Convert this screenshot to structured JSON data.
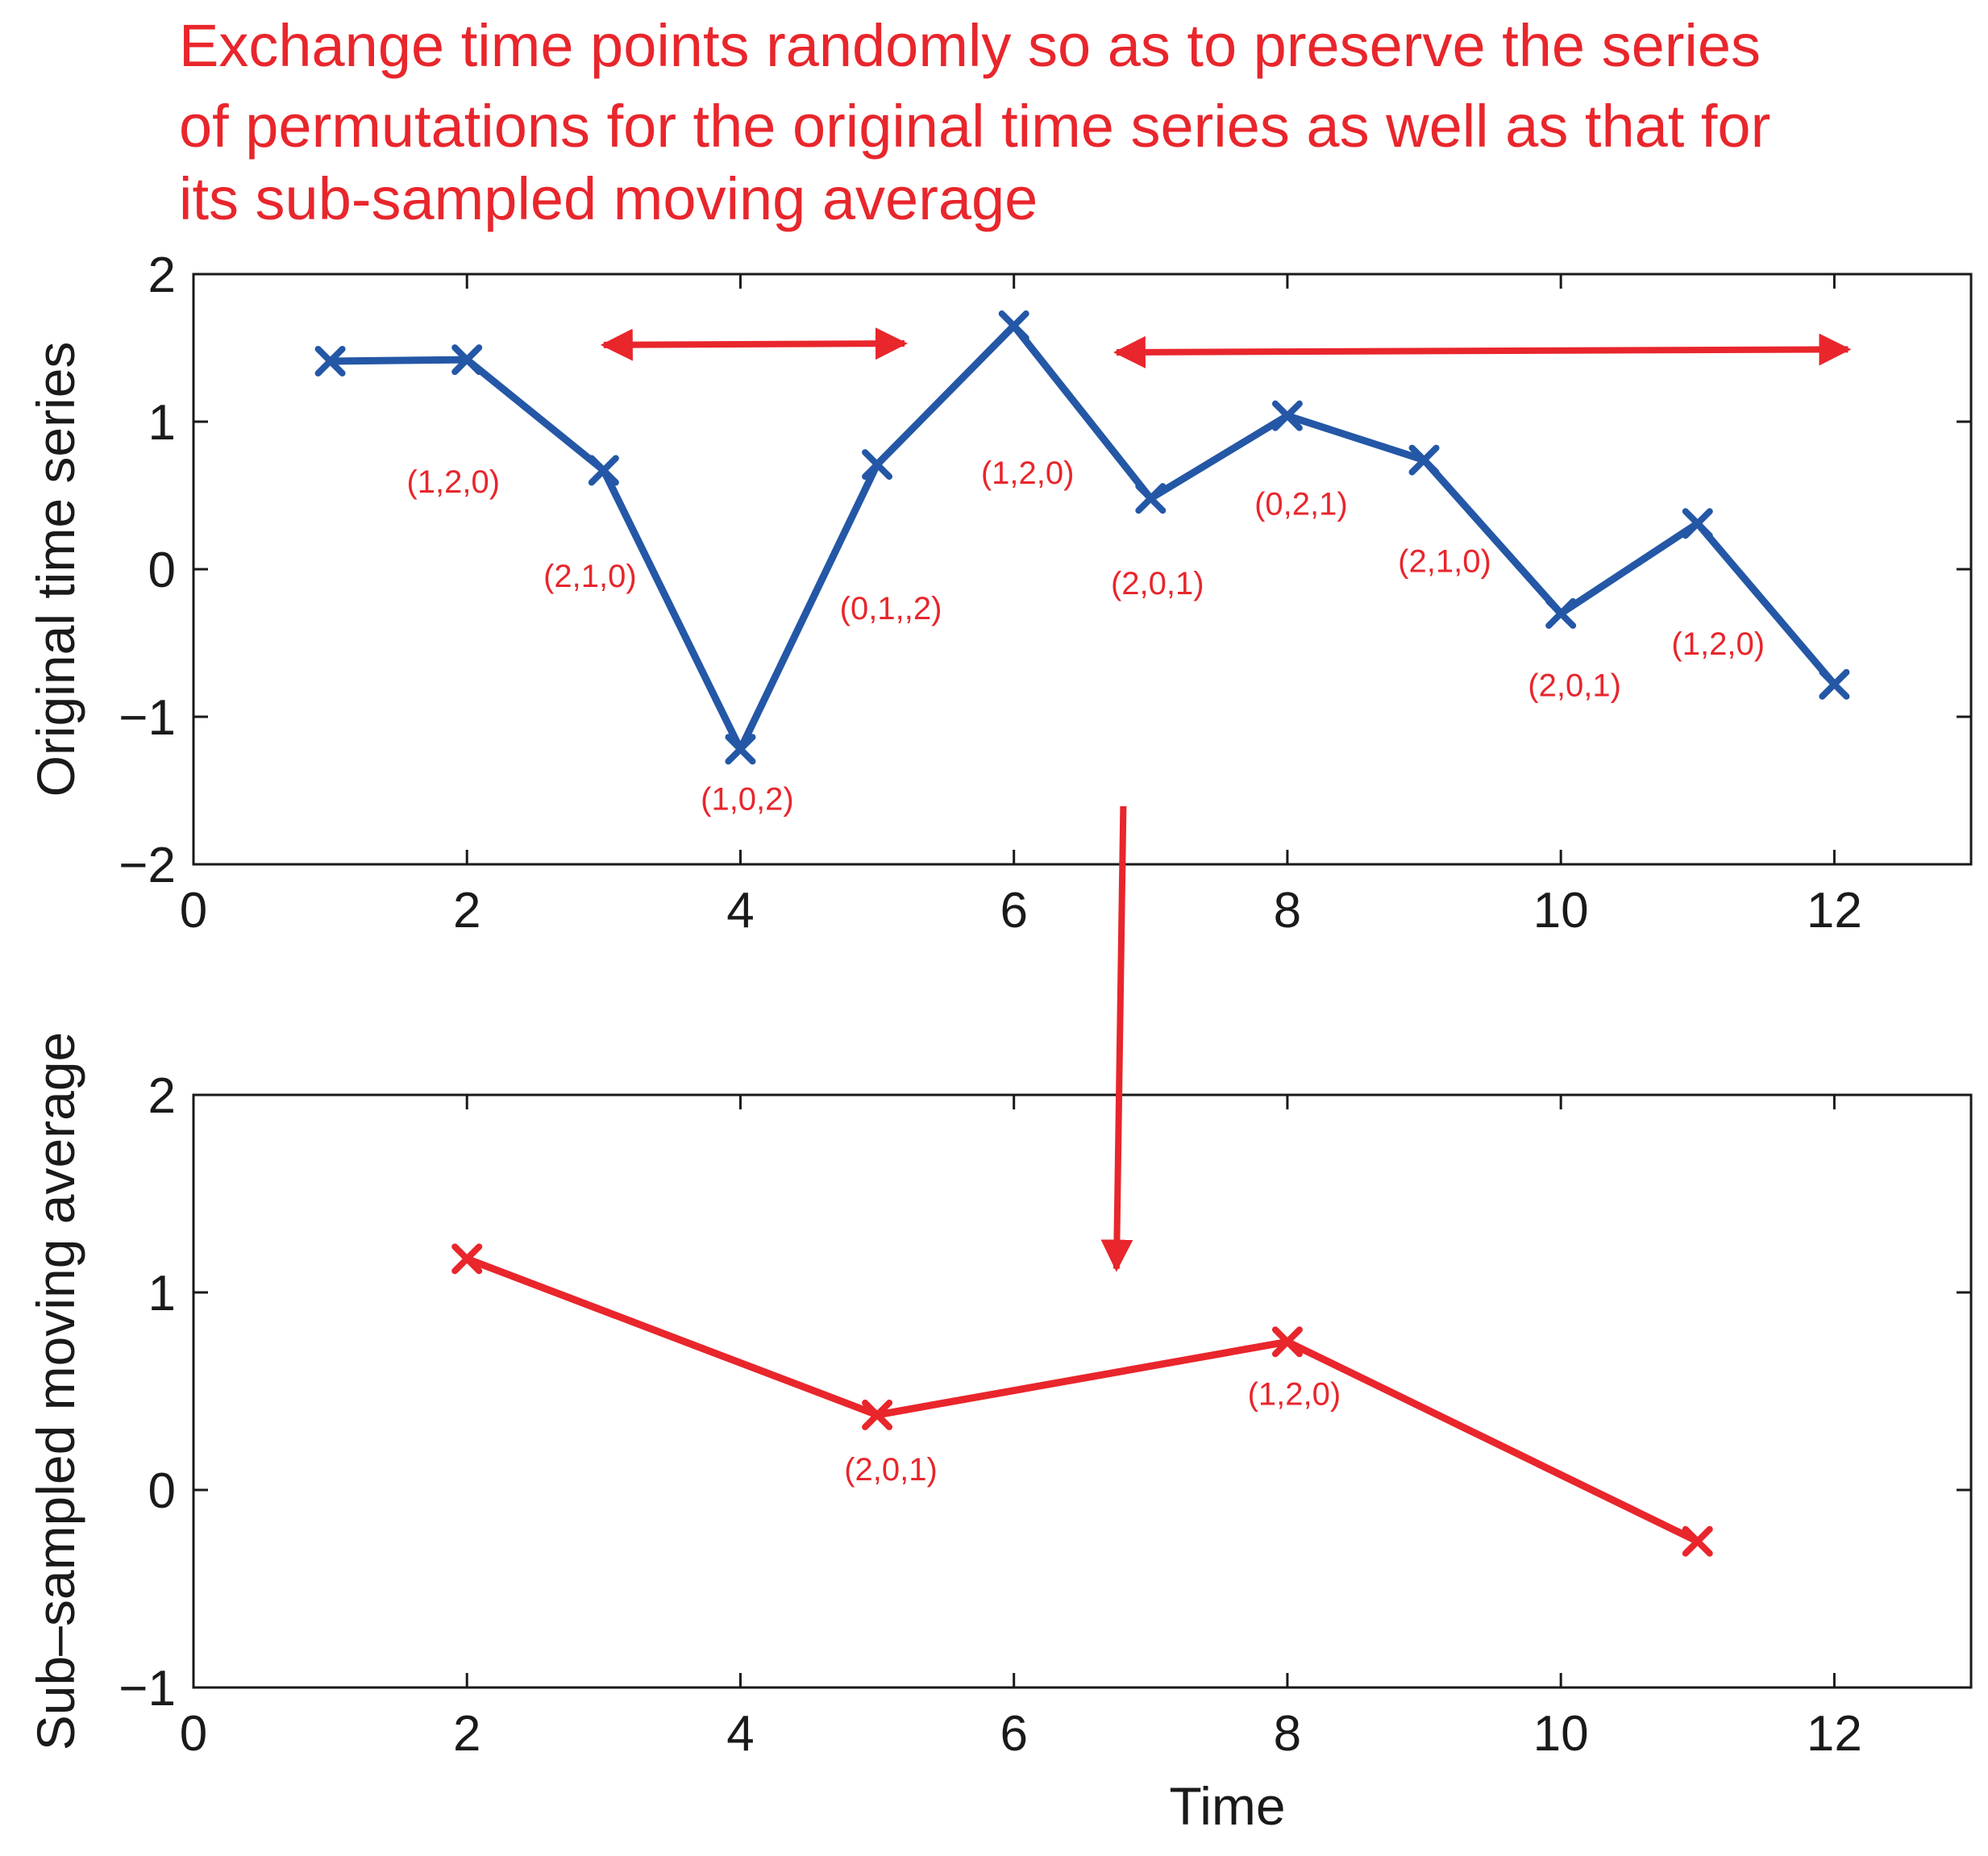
{
  "annotation": {
    "lines": [
      "Exchange time points randomly so as to preserve the series",
      "of permutations for the original time series as well as that for",
      "its sub-sampled moving average"
    ],
    "color": "#e8262c"
  },
  "colors": {
    "blue": "#2457a6",
    "red": "#e8262c",
    "axis": "#1a1a1a"
  },
  "chart_data": [
    {
      "type": "line",
      "id": "top",
      "ylabel": "Original time series",
      "xlabel": "",
      "xlim": [
        0,
        13
      ],
      "ylim": [
        -2,
        2
      ],
      "xticks": [
        0,
        2,
        4,
        6,
        8,
        10,
        12
      ],
      "yticks": [
        -2,
        -1,
        0,
        1,
        2
      ],
      "xtick_labels": [
        "0",
        "2",
        "4",
        "6",
        "8",
        "10",
        "12"
      ],
      "ytick_labels": [
        "−2",
        "−1",
        "0",
        "1",
        "2"
      ],
      "grid": false,
      "series": [
        {
          "name": "Original time series",
          "color": "#2457a6",
          "marker": "x",
          "x": [
            1,
            2,
            3,
            4,
            5,
            6,
            7,
            8,
            9,
            10,
            11,
            12
          ],
          "y": [
            1.41,
            1.42,
            0.67,
            -1.22,
            0.71,
            1.65,
            0.48,
            1.04,
            0.74,
            -0.3,
            0.31,
            -0.78
          ]
        }
      ],
      "permutation_labels": [
        {
          "text": "(1,2,0)",
          "x": 1.9,
          "y": 0.52
        },
        {
          "text": "(2,1,0)",
          "x": 2.9,
          "y": -0.12
        },
        {
          "text": "(1,0,2)",
          "x": 4.05,
          "y": -1.63
        },
        {
          "text": "(0,1,,2)",
          "x": 5.1,
          "y": -0.34
        },
        {
          "text": "(1,2,0)",
          "x": 6.1,
          "y": 0.58
        },
        {
          "text": "(2,0,1)",
          "x": 7.05,
          "y": -0.17
        },
        {
          "text": "(0,2,1)",
          "x": 8.1,
          "y": 0.37
        },
        {
          "text": "(2,1,0)",
          "x": 9.15,
          "y": -0.02
        },
        {
          "text": "(2,0,1)",
          "x": 10.1,
          "y": -0.86
        },
        {
          "text": "(1,2,0)",
          "x": 11.15,
          "y": -0.58
        }
      ],
      "exchange_arrows": [
        {
          "name": "exchange-arrow-1",
          "from": [
            3.0,
            1.52
          ],
          "to": [
            5.2,
            1.53
          ]
        },
        {
          "name": "exchange-arrow-2",
          "from": [
            6.75,
            1.47
          ],
          "to": [
            12.1,
            1.49
          ]
        }
      ]
    },
    {
      "type": "line",
      "id": "bottom",
      "ylabel": "Sub–sampled moving average",
      "xlabel": "Time",
      "xlim": [
        0,
        13
      ],
      "ylim": [
        -1,
        2
      ],
      "xticks": [
        0,
        2,
        4,
        6,
        8,
        10,
        12
      ],
      "yticks": [
        -1,
        0,
        1,
        2
      ],
      "xtick_labels": [
        "0",
        "2",
        "4",
        "6",
        "8",
        "10",
        "12"
      ],
      "ytick_labels": [
        "−1",
        "0",
        "1",
        "2"
      ],
      "grid": false,
      "series": [
        {
          "name": "Sub-sampled moving average",
          "color": "#e8262c",
          "marker": "x",
          "x": [
            2,
            5,
            8,
            11
          ],
          "y": [
            1.17,
            0.38,
            0.75,
            -0.26
          ]
        }
      ],
      "permutation_labels": [
        {
          "text": "(2,0,1)",
          "x": 5.1,
          "y": 0.05
        },
        {
          "text": "(1,2,0)",
          "x": 8.05,
          "y": 0.43
        }
      ]
    }
  ],
  "connector_arrow": {
    "name": "subsample-arrow",
    "x_top": 6.8,
    "x_bottom": 6.75,
    "y_bottom": 1.12
  }
}
